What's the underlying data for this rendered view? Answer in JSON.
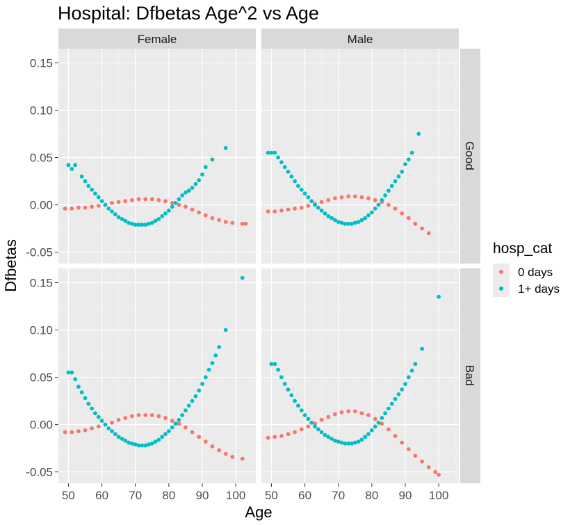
{
  "chart_data": {
    "type": "scatter",
    "title": "Hospital: Dfbetas Age^2 vs Age",
    "xlabel": "Age",
    "ylabel": "Dfbetas",
    "xlim": [
      47,
      106
    ],
    "ylim": [
      -0.062,
      0.165
    ],
    "x_ticks": [
      50,
      60,
      70,
      80,
      90,
      100
    ],
    "x_tick_labels": [
      "50",
      "60",
      "70",
      "80",
      "90",
      "100"
    ],
    "y_ticks": [
      -0.05,
      0.0,
      0.05,
      0.1,
      0.15
    ],
    "y_tick_labels": [
      "-0.05",
      "0.00",
      "0.05",
      "0.10",
      "0.15"
    ],
    "grid": true,
    "facet_columns": [
      "Female",
      "Male"
    ],
    "facet_rows": [
      "Good",
      "Bad"
    ],
    "legend": {
      "title": "hosp_cat",
      "placement": "right",
      "entries": [
        {
          "label": "0 days",
          "color": "#F8766D"
        },
        {
          "label": "1+ days",
          "color": "#00BFC4"
        }
      ]
    },
    "panels": [
      {
        "col": "Female",
        "row": "Good",
        "series": [
          {
            "name": "0 days",
            "x": [
              49,
              51,
              53,
              55,
              57,
              59,
              61,
              63,
              65,
              67,
              69,
              71,
              73,
              75,
              77,
              79,
              81,
              83,
              85,
              87,
              89,
              91,
              93,
              95,
              97,
              99,
              102,
              103
            ],
            "y": [
              -0.004,
              -0.004,
              -0.003,
              -0.003,
              -0.002,
              -0.001,
              0.0,
              0.002,
              0.003,
              0.004,
              0.005,
              0.006,
              0.006,
              0.006,
              0.005,
              0.004,
              0.002,
              0.0,
              -0.002,
              -0.005,
              -0.008,
              -0.011,
              -0.014,
              -0.016,
              -0.018,
              -0.019,
              -0.02,
              -0.02
            ]
          },
          {
            "name": "1+ days",
            "x": [
              50,
              51,
              52,
              54,
              55,
              56,
              57,
              58,
              59,
              60,
              61,
              62,
              63,
              64,
              65,
              66,
              67,
              68,
              69,
              70,
              71,
              72,
              73,
              74,
              75,
              76,
              77,
              78,
              79,
              80,
              81,
              82,
              83,
              84,
              85,
              86,
              87,
              88,
              89,
              90,
              91,
              93,
              97
            ],
            "y": [
              0.042,
              0.038,
              0.042,
              0.03,
              0.025,
              0.02,
              0.016,
              0.012,
              0.008,
              0.004,
              0.0,
              -0.004,
              -0.007,
              -0.01,
              -0.013,
              -0.015,
              -0.017,
              -0.019,
              -0.02,
              -0.021,
              -0.021,
              -0.021,
              -0.021,
              -0.02,
              -0.019,
              -0.017,
              -0.015,
              -0.012,
              -0.009,
              -0.006,
              -0.002,
              0.002,
              0.006,
              0.01,
              0.013,
              0.015,
              0.018,
              0.022,
              0.026,
              0.032,
              0.04,
              0.048,
              0.06
            ]
          }
        ]
      },
      {
        "col": "Male",
        "row": "Good",
        "series": [
          {
            "name": "0 days",
            "x": [
              49,
              51,
              53,
              55,
              57,
              59,
              61,
              63,
              65,
              67,
              69,
              71,
              73,
              75,
              77,
              79,
              81,
              83,
              85,
              87,
              89,
              91,
              93,
              95,
              97
            ],
            "y": [
              -0.007,
              -0.007,
              -0.006,
              -0.005,
              -0.004,
              -0.003,
              -0.001,
              0.001,
              0.003,
              0.005,
              0.007,
              0.008,
              0.009,
              0.009,
              0.008,
              0.007,
              0.005,
              0.003,
              0.0,
              -0.004,
              -0.009,
              -0.014,
              -0.02,
              -0.025,
              -0.03
            ]
          },
          {
            "name": "1+ days",
            "x": [
              49,
              50,
              51,
              52,
              53,
              54,
              55,
              56,
              57,
              58,
              59,
              60,
              61,
              62,
              63,
              64,
              65,
              66,
              67,
              68,
              69,
              70,
              71,
              72,
              73,
              74,
              75,
              76,
              77,
              78,
              79,
              80,
              81,
              82,
              83,
              84,
              85,
              86,
              87,
              88,
              89,
              90,
              91,
              92,
              94
            ],
            "y": [
              0.055,
              0.055,
              0.055,
              0.05,
              0.045,
              0.04,
              0.035,
              0.03,
              0.025,
              0.02,
              0.016,
              0.012,
              0.008,
              0.004,
              0.0,
              -0.003,
              -0.006,
              -0.009,
              -0.012,
              -0.014,
              -0.016,
              -0.018,
              -0.019,
              -0.02,
              -0.02,
              -0.02,
              -0.019,
              -0.018,
              -0.016,
              -0.014,
              -0.011,
              -0.008,
              -0.004,
              0.0,
              0.005,
              0.01,
              0.015,
              0.02,
              0.025,
              0.03,
              0.035,
              0.043,
              0.048,
              0.055,
              0.075
            ]
          }
        ]
      },
      {
        "col": "Female",
        "row": "Bad",
        "series": [
          {
            "name": "0 days",
            "x": [
              49,
              51,
              53,
              55,
              57,
              59,
              61,
              63,
              65,
              67,
              69,
              71,
              73,
              75,
              77,
              79,
              81,
              83,
              85,
              87,
              89,
              91,
              93,
              95,
              97,
              99,
              102
            ],
            "y": [
              -0.008,
              -0.008,
              -0.007,
              -0.006,
              -0.004,
              -0.002,
              0.0,
              0.002,
              0.005,
              0.007,
              0.009,
              0.01,
              0.01,
              0.01,
              0.009,
              0.007,
              0.004,
              0.001,
              -0.003,
              -0.008,
              -0.013,
              -0.018,
              -0.023,
              -0.027,
              -0.031,
              -0.034,
              -0.036
            ]
          },
          {
            "name": "1+ days",
            "x": [
              50,
              51,
              52,
              53,
              54,
              55,
              56,
              57,
              58,
              59,
              60,
              61,
              62,
              63,
              64,
              65,
              66,
              67,
              68,
              69,
              70,
              71,
              72,
              73,
              74,
              75,
              76,
              77,
              78,
              79,
              80,
              81,
              82,
              83,
              84,
              85,
              86,
              87,
              88,
              89,
              90,
              91,
              92,
              93,
              94,
              95,
              97,
              102
            ],
            "y": [
              0.055,
              0.055,
              0.048,
              0.04,
              0.034,
              0.028,
              0.022,
              0.017,
              0.012,
              0.008,
              0.004,
              0.0,
              -0.004,
              -0.007,
              -0.01,
              -0.013,
              -0.015,
              -0.017,
              -0.019,
              -0.02,
              -0.021,
              -0.022,
              -0.022,
              -0.022,
              -0.021,
              -0.02,
              -0.018,
              -0.016,
              -0.013,
              -0.01,
              -0.007,
              -0.003,
              0.001,
              0.005,
              0.01,
              0.015,
              0.02,
              0.025,
              0.03,
              0.036,
              0.043,
              0.05,
              0.058,
              0.065,
              0.073,
              0.082,
              0.1,
              0.155
            ]
          }
        ]
      },
      {
        "col": "Male",
        "row": "Bad",
        "series": [
          {
            "name": "0 days",
            "x": [
              49,
              51,
              53,
              55,
              57,
              59,
              61,
              63,
              65,
              67,
              69,
              71,
              73,
              75,
              77,
              79,
              81,
              83,
              85,
              87,
              89,
              91,
              93,
              95,
              97,
              99,
              100
            ],
            "y": [
              -0.014,
              -0.013,
              -0.012,
              -0.01,
              -0.008,
              -0.005,
              -0.002,
              0.001,
              0.005,
              0.008,
              0.011,
              0.013,
              0.014,
              0.014,
              0.012,
              0.01,
              0.006,
              0.001,
              -0.005,
              -0.012,
              -0.019,
              -0.026,
              -0.033,
              -0.039,
              -0.045,
              -0.05,
              -0.053
            ]
          },
          {
            "name": "1+ days",
            "x": [
              50,
              51,
              52,
              53,
              54,
              55,
              56,
              57,
              58,
              59,
              60,
              61,
              62,
              63,
              64,
              65,
              66,
              67,
              68,
              69,
              70,
              71,
              72,
              73,
              74,
              75,
              76,
              77,
              78,
              79,
              80,
              81,
              82,
              83,
              84,
              85,
              86,
              87,
              88,
              89,
              90,
              91,
              92,
              93,
              95,
              100
            ],
            "y": [
              0.064,
              0.064,
              0.058,
              0.05,
              0.043,
              0.037,
              0.031,
              0.025,
              0.02,
              0.015,
              0.01,
              0.006,
              0.002,
              -0.002,
              -0.005,
              -0.008,
              -0.011,
              -0.013,
              -0.015,
              -0.017,
              -0.018,
              -0.019,
              -0.02,
              -0.02,
              -0.02,
              -0.019,
              -0.018,
              -0.016,
              -0.013,
              -0.01,
              -0.006,
              -0.002,
              0.002,
              0.007,
              0.012,
              0.017,
              0.022,
              0.027,
              0.032,
              0.037,
              0.043,
              0.05,
              0.057,
              0.064,
              0.08,
              0.135
            ]
          }
        ]
      }
    ]
  }
}
